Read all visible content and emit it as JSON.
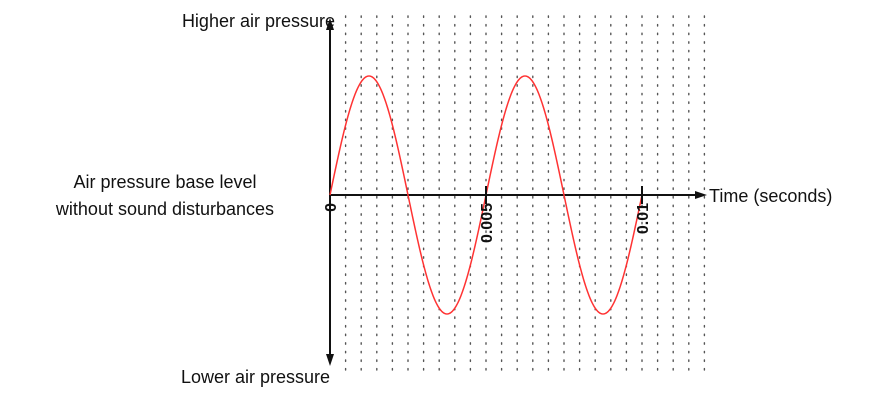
{
  "chart_data": {
    "type": "line",
    "title": "",
    "xlabel": "Time (seconds)",
    "ylabel": "",
    "y_axis_labels": {
      "top": "Higher air pressure",
      "bottom": "Lower air pressure",
      "baseline_line1": "Air pressure base level",
      "baseline_line2": "without sound disturbances"
    },
    "x_ticks": [
      {
        "value": 0,
        "label": "0"
      },
      {
        "value": 0.005,
        "label": "0.005"
      },
      {
        "value": 0.01,
        "label": "0.01"
      }
    ],
    "xlim": [
      0,
      0.01186
    ],
    "ylim": [
      -1.85,
      2.5
    ],
    "grid": {
      "vertical_dotted": true,
      "spacing": 0.0005
    },
    "series": [
      {
        "function": "sine",
        "amplitude": 1,
        "frequency_hz": 200,
        "x_range": [
          0,
          0.01
        ],
        "color": "#ff3333"
      }
    ],
    "axis_color": "#111111",
    "grid_color": "#555555"
  }
}
